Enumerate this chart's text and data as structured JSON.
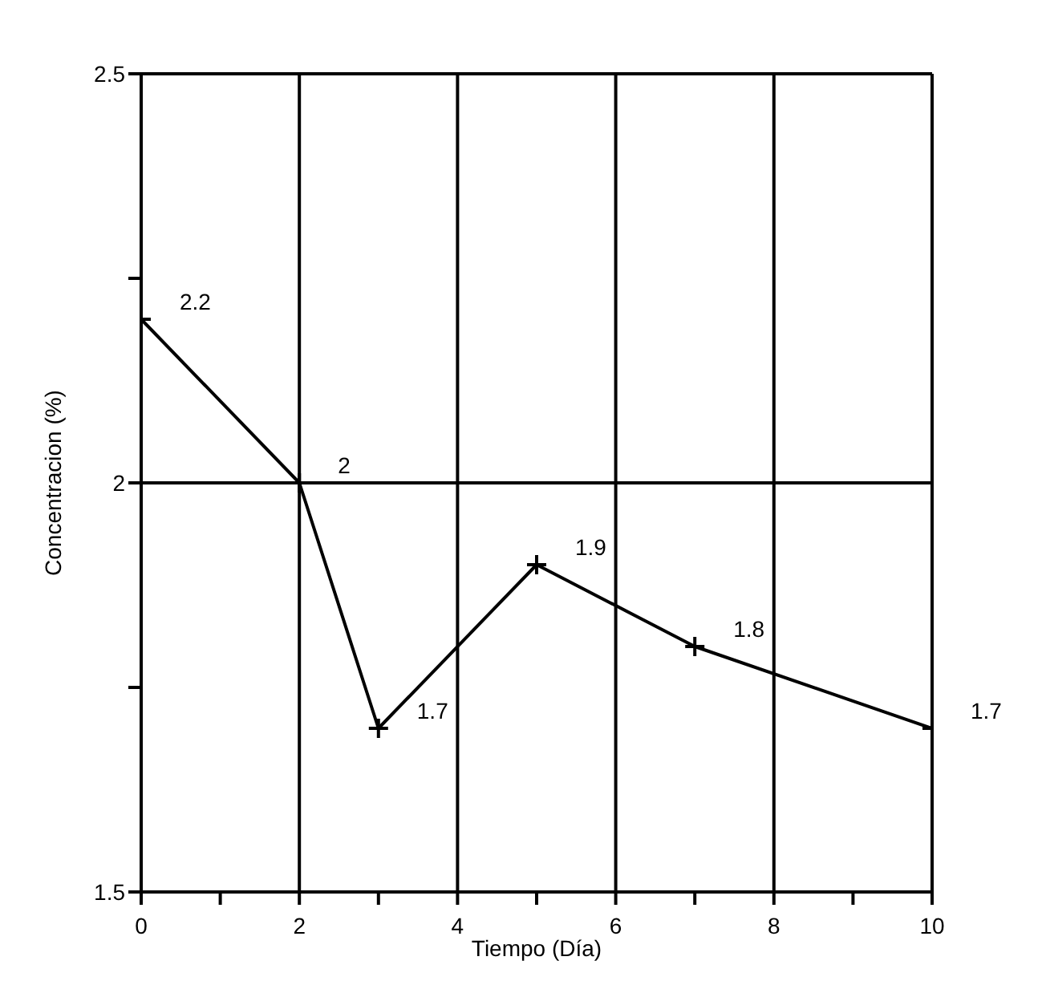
{
  "chart_data": {
    "type": "line",
    "xlabel": "Tiempo (Día)",
    "ylabel": "Concentracion (%)",
    "x": [
      0,
      2,
      3,
      5,
      7,
      10
    ],
    "series": [
      {
        "color": "#000000",
        "values": [
          2.2,
          2,
          1.7,
          1.9,
          1.8,
          1.7
        ]
      }
    ],
    "xlim": [
      0,
      10
    ],
    "xticks": [
      0,
      {
        "value": 1,
        "label": null
      },
      2,
      {
        "value": 3,
        "label": null
      },
      4,
      {
        "value": 5,
        "label": null
      },
      6,
      {
        "value": 7,
        "label": null
      },
      8,
      {
        "value": 9,
        "label": null
      },
      10
    ],
    "ylim": [
      1.5,
      2.5
    ],
    "yticks": [
      1.5,
      {
        "value": 1.75,
        "label": null
      },
      2,
      {
        "value": 2.25,
        "label": null
      },
      2.5
    ],
    "grid": true,
    "marker": "cross",
    "line_style": "solid",
    "data_labels": true,
    "legend": false
  }
}
